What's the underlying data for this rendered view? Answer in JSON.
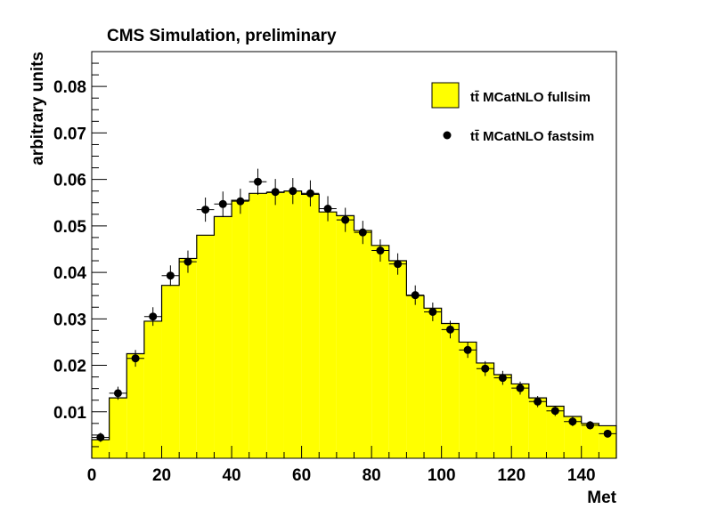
{
  "chart_data": {
    "type": "histogram",
    "title": "CMS Simulation, preliminary",
    "xlabel": "Met",
    "ylabel": "arbitrary units",
    "xlim": [
      0,
      150
    ],
    "ylim": [
      0,
      0.0875
    ],
    "bin_width": 5,
    "x_ticks": [
      0,
      20,
      40,
      60,
      80,
      100,
      120,
      140
    ],
    "y_ticks": [
      0.01,
      0.02,
      0.03,
      0.04,
      0.05,
      0.06,
      0.07,
      0.08
    ],
    "x_tick_labels": [
      "0",
      "20",
      "40",
      "60",
      "80",
      "100",
      "120",
      "140"
    ],
    "y_tick_labels": [
      "0.01",
      "0.02",
      "0.03",
      "0.04",
      "0.05",
      "0.06",
      "0.07",
      "0.08"
    ],
    "legend_position": "top-right",
    "series": [
      {
        "name": "tt̄ MCatNLO fullsim",
        "style": "filled-histogram",
        "color": "#ffff00",
        "bin_edges_start": [
          0,
          5,
          10,
          15,
          20,
          25,
          30,
          35,
          40,
          45,
          50,
          55,
          60,
          65,
          70,
          75,
          80,
          85,
          90,
          95,
          100,
          105,
          110,
          115,
          120,
          125,
          130,
          135,
          140,
          145
        ],
        "values": [
          0.004,
          0.013,
          0.0225,
          0.0295,
          0.0372,
          0.043,
          0.048,
          0.052,
          0.0555,
          0.057,
          0.0572,
          0.0575,
          0.0568,
          0.053,
          0.0522,
          0.049,
          0.0458,
          0.0425,
          0.035,
          0.0323,
          0.029,
          0.025,
          0.0205,
          0.018,
          0.016,
          0.013,
          0.0112,
          0.009,
          0.0075,
          0.007
        ]
      },
      {
        "name": "tt̄ MCatNLO fastsim",
        "style": "points-with-errors",
        "color": "#000000",
        "x": [
          2.5,
          7.5,
          12.5,
          17.5,
          22.5,
          27.5,
          32.5,
          37.5,
          42.5,
          47.5,
          52.5,
          57.5,
          62.5,
          67.5,
          72.5,
          77.5,
          82.5,
          87.5,
          92.5,
          97.5,
          102.5,
          107.5,
          112.5,
          117.5,
          122.5,
          127.5,
          132.5,
          137.5,
          142.5,
          147.5
        ],
        "values": [
          0.0045,
          0.014,
          0.0215,
          0.0305,
          0.0393,
          0.0423,
          0.0535,
          0.0547,
          0.0553,
          0.0595,
          0.0573,
          0.0575,
          0.057,
          0.0537,
          0.0513,
          0.0486,
          0.0447,
          0.0418,
          0.0351,
          0.0315,
          0.0277,
          0.0233,
          0.0193,
          0.0173,
          0.0151,
          0.0122,
          0.0102,
          0.0079,
          0.0071,
          0.0053
        ],
        "errors": [
          0.001,
          0.0014,
          0.0018,
          0.002,
          0.0022,
          0.0024,
          0.0026,
          0.0027,
          0.0027,
          0.0028,
          0.0028,
          0.0028,
          0.0028,
          0.0027,
          0.0026,
          0.0025,
          0.0024,
          0.0023,
          0.0021,
          0.002,
          0.0019,
          0.0017,
          0.0016,
          0.0015,
          0.0014,
          0.0012,
          0.0011,
          0.001,
          0.0009,
          0.0008
        ]
      }
    ]
  }
}
